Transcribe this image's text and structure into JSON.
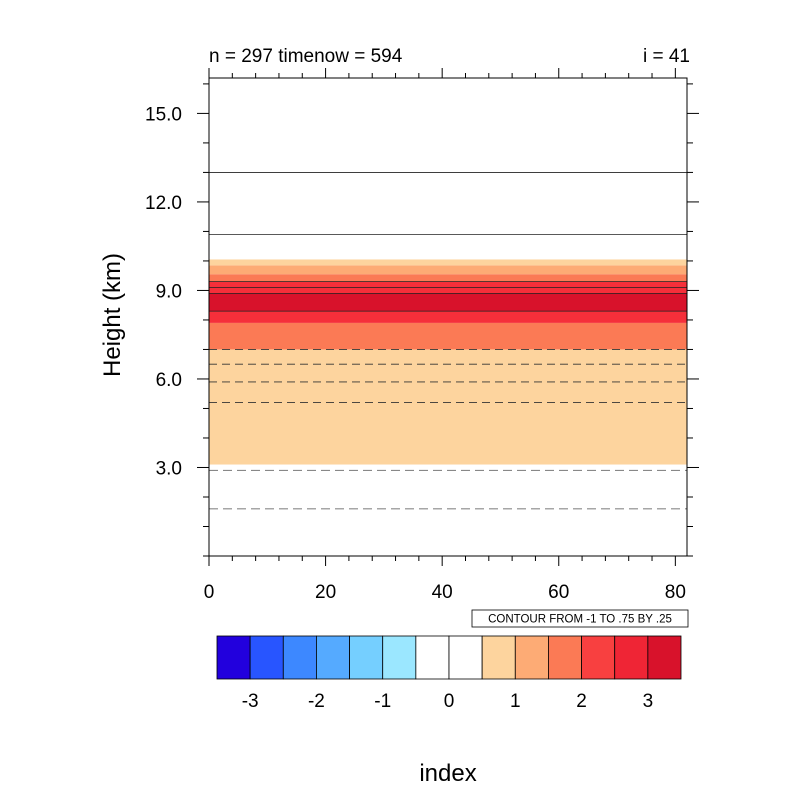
{
  "chart_data": {
    "type": "contour",
    "title_left": "n = 297 timenow = 594",
    "title_right": "i = 41",
    "xlabel": "index",
    "ylabel": "Height (km)",
    "xlim": [
      0,
      82
    ],
    "ylim": [
      0,
      16.2
    ],
    "x_ticks": [
      0,
      20,
      40,
      60,
      80
    ],
    "x_tick_labels": [
      "0",
      "20",
      "40",
      "60",
      "80"
    ],
    "y_ticks": [
      3,
      6,
      9,
      12,
      15
    ],
    "y_tick_labels": [
      "3.0",
      "6.0",
      "9.0",
      "12.0",
      "15.0"
    ],
    "contour_info": "CONTOUR FROM -1 TO .75 BY .25",
    "bands": [
      {
        "y0": 3.1,
        "y1": 7.0,
        "level": 0.75
      },
      {
        "y0": 7.0,
        "y1": 7.9,
        "level": 1.75
      },
      {
        "y0": 7.9,
        "y1": 9.3,
        "level": 2.25
      },
      {
        "y0": 8.3,
        "y1": 8.9,
        "level": 2.75
      },
      {
        "y0": 9.3,
        "y1": 9.55,
        "level": 1.75
      },
      {
        "y0": 9.55,
        "y1": 9.85,
        "level": 1.25
      },
      {
        "y0": 9.85,
        "y1": 10.05,
        "level": 0.75
      }
    ],
    "contour_lines": [
      {
        "y": 13.0,
        "level": 0.0,
        "style": "solid"
      },
      {
        "y": 10.9,
        "level": 0.0,
        "style": "solid"
      },
      {
        "y": 9.3,
        "level": 0.75,
        "style": "solid"
      },
      {
        "y": 9.1,
        "level": 0.5,
        "style": "solid"
      },
      {
        "y": 8.9,
        "level": 0.25,
        "style": "solid"
      },
      {
        "y": 8.3,
        "level": 0.0,
        "style": "solid"
      },
      {
        "y": 7.0,
        "level": -0.25,
        "style": "dashed"
      },
      {
        "y": 6.5,
        "level": -0.5,
        "style": "dashed"
      },
      {
        "y": 5.9,
        "level": -0.75,
        "style": "dashed"
      },
      {
        "y": 5.2,
        "level": -1.0,
        "style": "dashed"
      },
      {
        "y": 2.9,
        "level": -1.0,
        "style": "dashed-gray"
      },
      {
        "y": 1.6,
        "level": -1.0,
        "style": "dashed-gray"
      }
    ],
    "colorbar": {
      "colors": [
        "#2200dd",
        "#2855ff",
        "#3d88ff",
        "#55aaff",
        "#75cfff",
        "#9be7ff",
        "#ffffff",
        "#ffffff",
        "#fdd49e",
        "#fdab75",
        "#fb7a55",
        "#f84040",
        "#ef2535",
        "#d8122b"
      ],
      "tick_labels": [
        "-3",
        "-2",
        "-1",
        "0",
        "1",
        "2",
        "3"
      ]
    }
  }
}
